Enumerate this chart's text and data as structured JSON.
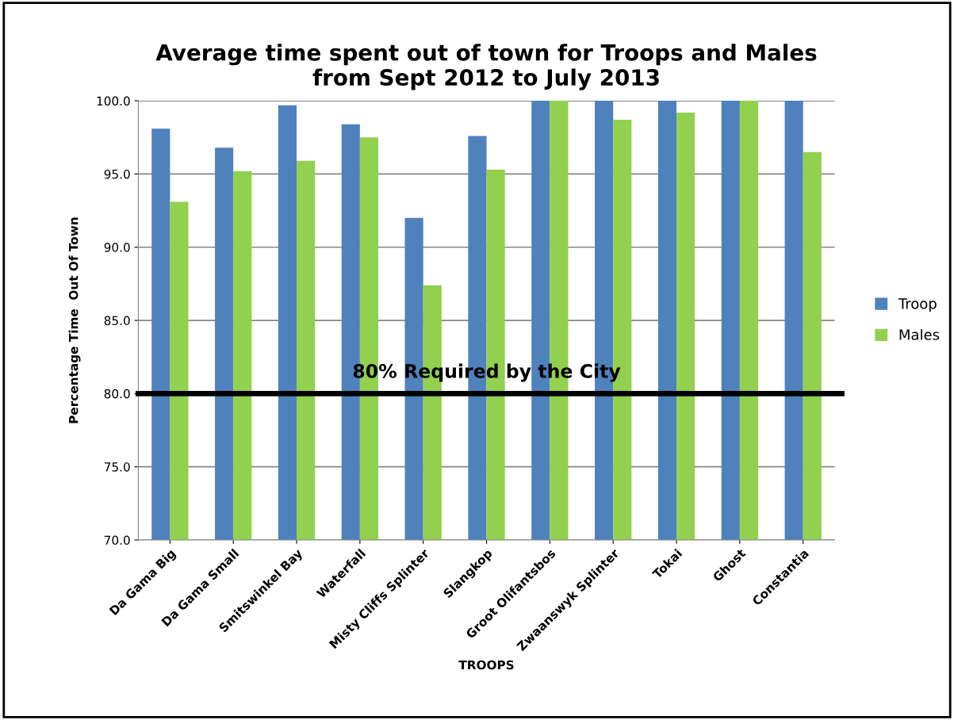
{
  "chart_data": {
    "type": "bar",
    "title": "Average time spent out of town for Troops and Males\nfrom Sept 2012 to July 2013",
    "xlabel": "TROOPS",
    "ylabel": "Percentage Time  Out Of Town",
    "categories": [
      "Da Gama Big",
      "Da Gama Small",
      "Smitswinkel Bay",
      "Waterfall",
      "Misty Cliffs Splinter",
      "Slangkop",
      "Groot Olifantsbos",
      "Zwaanswyk Splinter",
      "Tokai",
      "Ghost",
      "Constantia"
    ],
    "series": [
      {
        "name": "Troop",
        "color": "#4f81bd",
        "values": [
          98.1,
          96.8,
          99.7,
          98.4,
          92.0,
          97.6,
          100.0,
          100.0,
          100.0,
          100.0,
          100.0
        ]
      },
      {
        "name": "Males",
        "color": "#92d050",
        "values": [
          93.1,
          95.2,
          95.9,
          97.5,
          87.4,
          95.3,
          100.0,
          98.7,
          99.2,
          100.0,
          96.5
        ]
      }
    ],
    "ylim": [
      70,
      100
    ],
    "yticks": [
      {
        "value": 70,
        "label": "70.0"
      },
      {
        "value": 75,
        "label": "75.0"
      },
      {
        "value": 80,
        "label": "80.0"
      },
      {
        "value": 85,
        "label": "85.0"
      },
      {
        "value": 90,
        "label": "90.0"
      },
      {
        "value": 95,
        "label": "95.0"
      },
      {
        "value": 100,
        "label": "100.0"
      }
    ],
    "ref_lines": [
      {
        "axis": "y",
        "value": 80,
        "label": "80% Required by the City",
        "color": "#000000"
      }
    ],
    "grid": "y",
    "legend": "right"
  }
}
